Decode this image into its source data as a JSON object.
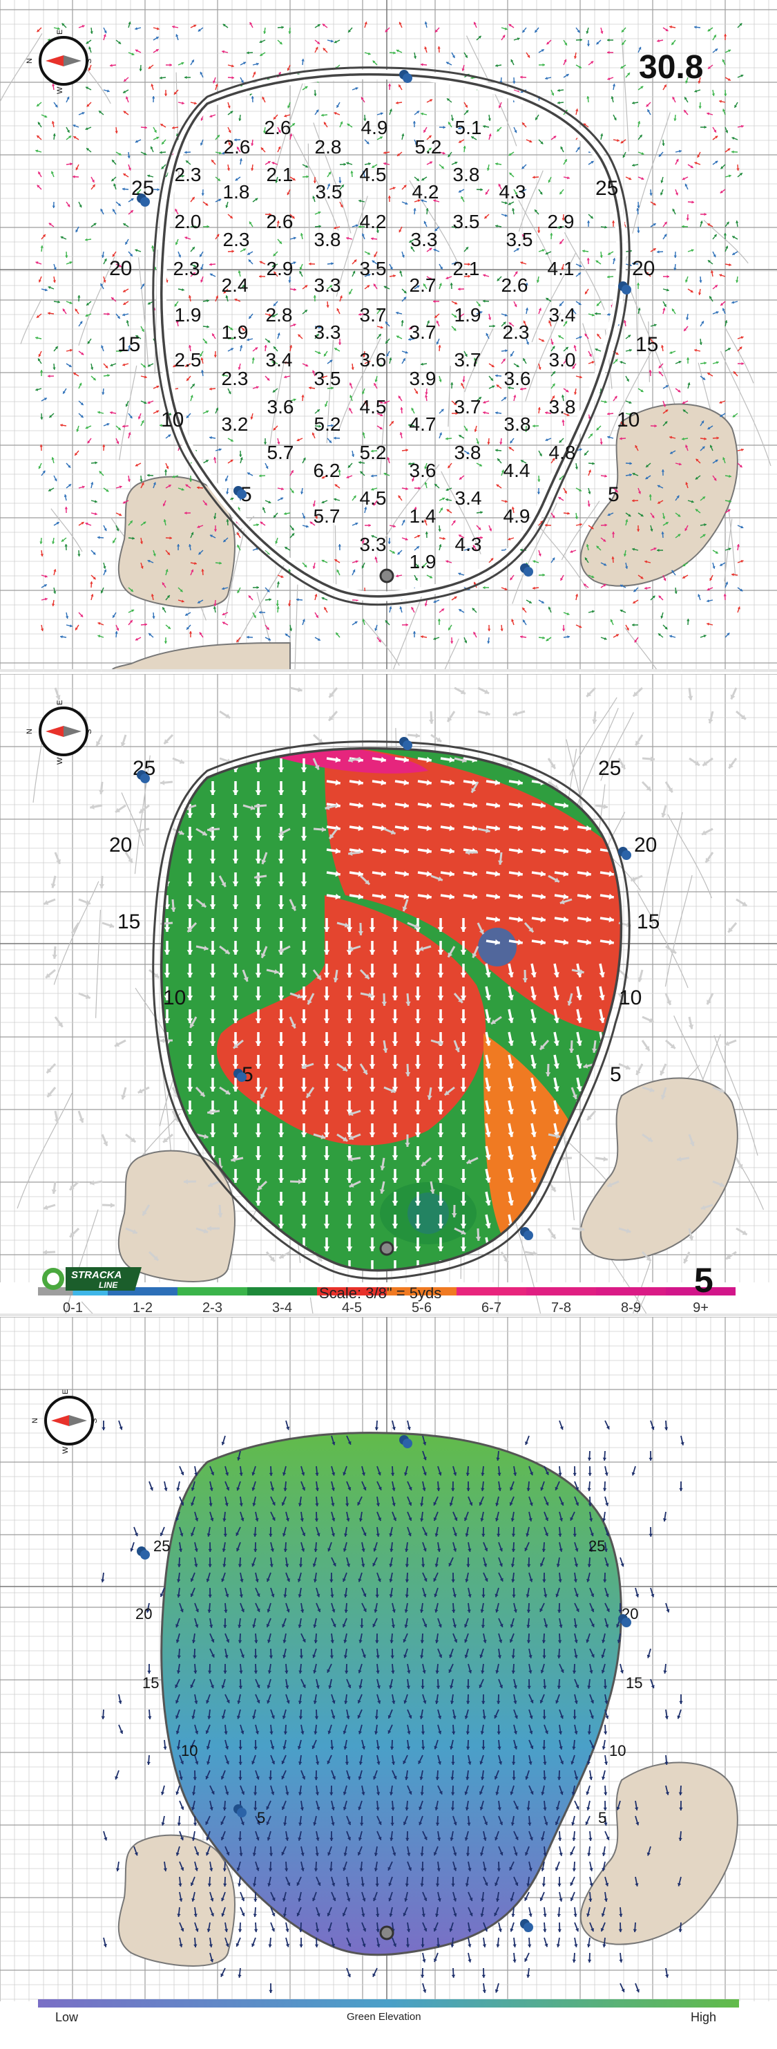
{
  "panel1": {
    "slope_total": "30.8",
    "compass": {
      "north": "N",
      "east": "E",
      "south": "S",
      "west": "W"
    },
    "yard_marks_left": [
      "25",
      "20",
      "15",
      "10",
      "5"
    ],
    "yard_marks_right": [
      "25",
      "20",
      "15",
      "10",
      "5"
    ],
    "slope_values": [
      "2.6",
      "4.9",
      "5.1",
      "2.6",
      "2.8",
      "5.2",
      "2.3",
      "2.1",
      "4.5",
      "3.8",
      "1.8",
      "3.5",
      "4.2",
      "4.3",
      "2.0",
      "2.6",
      "4.2",
      "3.5",
      "2.9",
      "2.3",
      "3.8",
      "3.3",
      "3.5",
      "2.3",
      "2.9",
      "3.5",
      "2.1",
      "4.1",
      "2.4",
      "3.3",
      "2.7",
      "2.6",
      "1.9",
      "2.8",
      "3.7",
      "1.9",
      "3.4",
      "1.9",
      "3.3",
      "3.7",
      "2.3",
      "2.5",
      "3.4",
      "3.6",
      "3.7",
      "3.0",
      "2.3",
      "3.5",
      "3.9",
      "3.6",
      "3.6",
      "4.5",
      "3.7",
      "3.8",
      "3.2",
      "5.2",
      "4.7",
      "3.8",
      "5.7",
      "5.2",
      "3.8",
      "4.8",
      "6.2",
      "3.6",
      "4.4",
      "4.5",
      "3.4",
      "5.7",
      "1.4",
      "4.9",
      "3.3",
      "4.3",
      "1.9"
    ]
  },
  "panel2": {
    "hole_number": "5",
    "scale": "Scale: 3/8\" = 5yds",
    "logo_text": "STRACKA LINE",
    "compass": {
      "north": "N",
      "east": "E",
      "south": "S",
      "west": "W"
    },
    "yard_marks_left": [
      "25",
      "20",
      "15",
      "10",
      "5"
    ],
    "yard_marks_right": [
      "25",
      "20",
      "15",
      "10",
      "5"
    ],
    "legend": [
      {
        "label": "0-1",
        "colors": [
          "#9e9e9e",
          "#3fb6e8"
        ]
      },
      {
        "label": "1-2",
        "colors": [
          "#2c6fb8"
        ]
      },
      {
        "label": "2-3",
        "colors": [
          "#3bb44a"
        ]
      },
      {
        "label": "3-4",
        "colors": [
          "#1e8a3a"
        ]
      },
      {
        "label": "4-5",
        "colors": [
          "#e8322b"
        ]
      },
      {
        "label": "5-6",
        "colors": [
          "#f07a22"
        ]
      },
      {
        "label": "6-7",
        "colors": [
          "#e8257d"
        ]
      },
      {
        "label": "7-8",
        "colors": [
          "#e01f82"
        ]
      },
      {
        "label": "8-9",
        "colors": [
          "#da1b86"
        ]
      },
      {
        "label": "9+",
        "colors": [
          "#d2168a"
        ]
      }
    ]
  },
  "panel3": {
    "compass": {
      "north": "N",
      "east": "E",
      "south": "S",
      "west": "W"
    },
    "yard_marks_left": [
      "25",
      "20",
      "15",
      "10",
      "5"
    ],
    "yard_marks_right": [
      "25",
      "20",
      "15",
      "10",
      "5"
    ],
    "elevation_low": "Low",
    "elevation_title": "Green Elevation",
    "elevation_high": "High",
    "elevation_colors": [
      "#7a6fc6",
      "#4aa0c8",
      "#62bb4a"
    ]
  }
}
